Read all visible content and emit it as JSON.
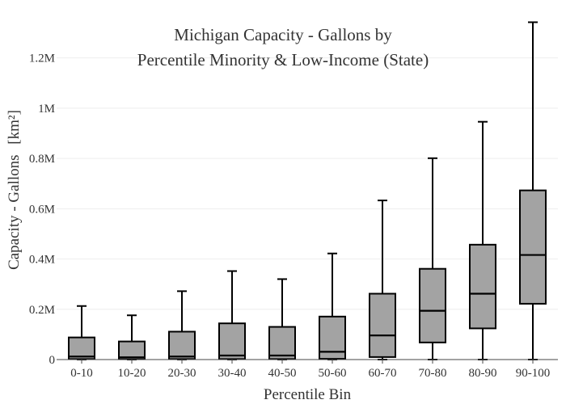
{
  "chart_data": {
    "type": "box",
    "title": "Michigan Capacity - Gallons by",
    "subtitle": "Percentile Minority & Low-Income (State)",
    "xlabel": "Percentile Bin",
    "ylabel": "Capacity - Gallons",
    "ylabel_unit": "[km²]",
    "ylim": [
      0,
      1350000
    ],
    "yticks": [
      {
        "value": 0,
        "label": "0"
      },
      {
        "value": 200000,
        "label": "0.2M"
      },
      {
        "value": 400000,
        "label": "0.4M"
      },
      {
        "value": 600000,
        "label": "0.6M"
      },
      {
        "value": 800000,
        "label": "0.8M"
      },
      {
        "value": 1000000,
        "label": "1M"
      },
      {
        "value": 1200000,
        "label": "1.2M"
      }
    ],
    "grid": true,
    "box_color": "#a3a3a3",
    "line_color": "#000000",
    "categories": [
      "0-10",
      "10-20",
      "20-30",
      "30-40",
      "40-50",
      "50-60",
      "60-70",
      "70-80",
      "80-90",
      "90-100"
    ],
    "boxes": [
      {
        "category": "0-10",
        "min": 0,
        "q1": 2000,
        "median": 12000,
        "q3": 88000,
        "max": 213000
      },
      {
        "category": "10-20",
        "min": 0,
        "q1": 1500,
        "median": 9000,
        "q3": 72000,
        "max": 176000
      },
      {
        "category": "20-30",
        "min": 0,
        "q1": 2000,
        "median": 12000,
        "q3": 111000,
        "max": 272000
      },
      {
        "category": "30-40",
        "min": 0,
        "q1": 2000,
        "median": 16000,
        "q3": 144000,
        "max": 352000
      },
      {
        "category": "40-50",
        "min": 0,
        "q1": 2000,
        "median": 16000,
        "q3": 130000,
        "max": 320000
      },
      {
        "category": "50-60",
        "min": 0,
        "q1": 3000,
        "median": 31000,
        "q3": 171000,
        "max": 422000
      },
      {
        "category": "60-70",
        "min": 0,
        "q1": 10000,
        "median": 96000,
        "q3": 262000,
        "max": 633000
      },
      {
        "category": "70-80",
        "min": 0,
        "q1": 68000,
        "median": 194000,
        "q3": 361000,
        "max": 801000
      },
      {
        "category": "80-90",
        "min": 0,
        "q1": 124000,
        "median": 262000,
        "q3": 457000,
        "max": 946000
      },
      {
        "category": "90-100",
        "min": 0,
        "q1": 222000,
        "median": 416000,
        "q3": 673000,
        "max": 1342000
      }
    ]
  }
}
